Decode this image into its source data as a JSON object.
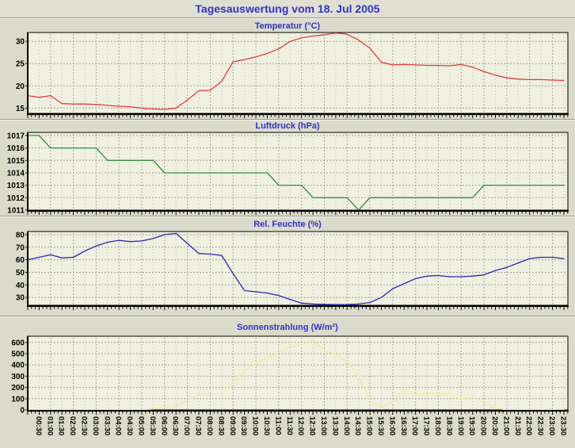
{
  "page": {
    "title": "Tagesauswertung vom 18. Jul 2005"
  },
  "colors": {
    "page_bg": "#dbdbcb",
    "header_bg": "#e0e0d2",
    "plot_bg": "#f0f0e0",
    "grid": "#9a9a94",
    "axis": "#000000",
    "title_blue": "#3232c8",
    "temperature_line": "#e03c3c",
    "pressure_line": "#2d8f3c",
    "humidity_line": "#2626bb",
    "solar_line": "#ededa0"
  },
  "time_axis": {
    "start": "00:00",
    "step_minutes": 30,
    "labels": [
      "00:30",
      "01:00",
      "01:30",
      "02:00",
      "02:30",
      "03:00",
      "03:30",
      "04:00",
      "04:30",
      "05:00",
      "05:30",
      "06:00",
      "06:30",
      "07:00",
      "07:30",
      "08:00",
      "08:30",
      "09:00",
      "09:30",
      "10:00",
      "10:30",
      "11:00",
      "11:30",
      "12:00",
      "12:30",
      "13:00",
      "13:30",
      "14:00",
      "14:30",
      "15:00",
      "15:30",
      "16:00",
      "16:30",
      "17:00",
      "17:30",
      "18:00",
      "18:30",
      "19:00",
      "19:30",
      "20:00",
      "20:30",
      "21:00",
      "21:30",
      "22:00",
      "22:30",
      "23:00",
      "23:30"
    ]
  },
  "chart_data": [
    {
      "type": "line",
      "title": "Temperatur (°C)",
      "ylabel": "°C",
      "color": "#e03c3c",
      "ylim": [
        13.8,
        32.0
      ],
      "yticks": [
        15,
        20,
        25,
        30
      ],
      "xlim": [
        0,
        47.35
      ],
      "values": [
        17.8,
        17.4,
        17.8,
        16.0,
        15.9,
        15.9,
        15.8,
        15.6,
        15.4,
        15.3,
        15.0,
        14.8,
        14.7,
        15.0,
        16.8,
        18.9,
        19.0,
        21.0,
        25.4,
        25.9,
        26.5,
        27.3,
        28.3,
        30.0,
        30.8,
        31.2,
        31.5,
        31.9,
        31.6,
        30.3,
        28.5,
        25.3,
        24.7,
        24.8,
        24.7,
        24.6,
        24.6,
        24.5,
        24.8,
        24.2,
        23.2,
        22.4,
        21.8,
        21.5,
        21.4,
        21.4,
        21.3,
        21.2
      ],
      "show_x_labels": false
    },
    {
      "type": "line",
      "title": "Luftdruck (hPa)",
      "ylabel": "hPa",
      "color": "#2d8f3c",
      "ylim": [
        1011,
        1017.25
      ],
      "yticks": [
        1011,
        1012,
        1013,
        1014,
        1015,
        1016,
        1017
      ],
      "xlim": [
        0,
        47.35
      ],
      "values": [
        1017,
        1017,
        1016,
        1016,
        1016,
        1016,
        1016,
        1015,
        1015,
        1015,
        1015,
        1015,
        1014,
        1014,
        1014,
        1014,
        1014,
        1014,
        1014,
        1014,
        1014,
        1014,
        1013,
        1013,
        1013,
        1012,
        1012,
        1012,
        1012,
        1011,
        1012,
        1012,
        1012,
        1012,
        1012,
        1012,
        1012,
        1012,
        1012,
        1012,
        1013,
        1013,
        1013,
        1013,
        1013,
        1013,
        1013,
        1013
      ],
      "show_x_labels": false
    },
    {
      "type": "line",
      "title": "Rel. Feuchte (%)",
      "ylabel": "%",
      "color": "#2626bb",
      "ylim": [
        23.8,
        82.5
      ],
      "yticks": [
        30,
        40,
        50,
        60,
        70,
        80
      ],
      "xlim": [
        0,
        47.35
      ],
      "values": [
        60,
        62,
        64,
        61.5,
        62,
        67,
        71,
        74,
        75.5,
        74.5,
        75,
        77,
        80,
        81,
        73,
        65,
        64.5,
        63.5,
        49,
        35.5,
        34.5,
        33.5,
        31.5,
        28.5,
        25.5,
        24.8,
        24.5,
        24.3,
        24.3,
        24.8,
        26,
        30,
        37,
        41,
        45,
        47,
        47.5,
        46.5,
        46.5,
        47,
        48,
        51.5,
        54,
        57.5,
        61,
        62,
        62,
        61
      ],
      "show_x_labels": false
    },
    {
      "type": "line",
      "title": "Sonnenstrahlung (W/m²)",
      "ylabel": "W/m²",
      "color": "#ededa0",
      "ylim": [
        0,
        655
      ],
      "yticks": [
        0,
        100,
        200,
        300,
        400,
        500,
        600
      ],
      "xlim": [
        0,
        47.35
      ],
      "values": [
        0,
        0,
        0,
        0,
        0,
        0,
        0,
        0,
        0,
        0,
        0,
        8,
        20,
        35,
        85,
        143,
        143,
        144,
        245,
        350,
        415,
        465,
        510,
        560,
        575,
        630,
        525,
        497,
        430,
        300,
        79,
        20,
        70,
        190,
        130,
        146,
        150,
        131,
        100,
        108,
        65,
        15,
        0,
        0,
        0,
        0,
        0,
        0
      ],
      "show_x_labels": true
    }
  ]
}
